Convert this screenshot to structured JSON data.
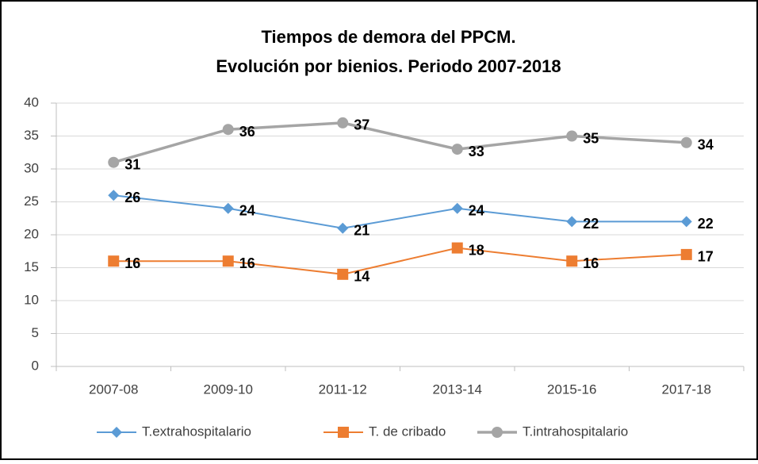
{
  "chart_data": {
    "type": "line",
    "title": [
      "Tiempos de demora del PPCM.",
      "Evolución por bienios. Periodo 2007-2018"
    ],
    "categories": [
      "2007-08",
      "2009-10",
      "2011-12",
      "2013-14",
      "2015-16",
      "2017-18"
    ],
    "series": [
      {
        "name": "T.extrahospitalario",
        "color": "#5b9bd5",
        "marker": "diamond",
        "values": [
          26,
          24,
          21,
          24,
          22,
          22
        ]
      },
      {
        "name": "T. de cribado",
        "color": "#ed7d31",
        "marker": "square",
        "values": [
          16,
          16,
          14,
          18,
          16,
          17
        ]
      },
      {
        "name": "T.intrahospitalario",
        "color": "#a5a5a5",
        "marker": "circle",
        "values": [
          31,
          36,
          37,
          33,
          35,
          34
        ]
      }
    ],
    "ylim": [
      0,
      40
    ],
    "yticks": [
      0,
      5,
      10,
      15,
      20,
      25,
      30,
      35,
      40
    ],
    "grid": true,
    "legend": "bottom"
  }
}
